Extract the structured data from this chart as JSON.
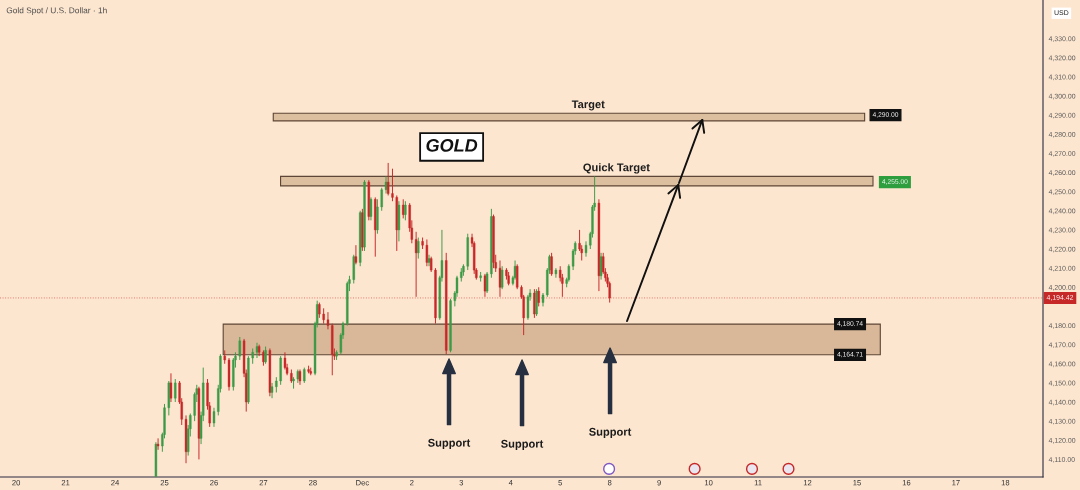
{
  "chart_data": {
    "type": "candlestick",
    "title": "Gold Spot / U.S. Dollar · 1h",
    "ylabel": "USD",
    "categories": [
      null,
      null,
      null,
      null,
      null,
      null,
      null,
      "20",
      null,
      null,
      null,
      null,
      null,
      null,
      null,
      null,
      null,
      null,
      null,
      null,
      null,
      null,
      null,
      null,
      null,
      null,
      null,
      null,
      null,
      null,
      "21",
      null,
      null,
      null,
      null,
      null,
      null,
      null,
      null,
      null,
      null,
      null,
      null,
      null,
      null,
      null,
      null,
      null,
      null,
      null,
      null,
      null,
      null,
      "24",
      null,
      null,
      null,
      null,
      null,
      null,
      null,
      null,
      null,
      null,
      null,
      null,
      null,
      null,
      null,
      null,
      null,
      null,
      null,
      null,
      null,
      null,
      "25",
      null,
      null,
      null,
      null,
      null,
      null,
      null,
      null,
      null,
      null,
      null,
      null,
      null,
      null,
      null,
      null,
      null,
      null,
      null,
      null,
      null,
      null,
      "26",
      null,
      null,
      null,
      null,
      null,
      null,
      null,
      null,
      null,
      null,
      null,
      null,
      null,
      null,
      null,
      null,
      null,
      null,
      null,
      null,
      null,
      null,
      "27",
      null,
      null,
      null,
      null,
      null,
      null,
      null,
      null,
      null,
      null,
      null,
      null,
      null,
      null,
      null,
      null,
      null,
      null,
      null,
      null,
      null,
      null,
      "28",
      null,
      null,
      null,
      null,
      null,
      null,
      null,
      null,
      null,
      null,
      null,
      null,
      null,
      null,
      null,
      null,
      null,
      null,
      null,
      null,
      null,
      null,
      "Dec",
      null,
      null,
      null,
      null,
      null,
      null,
      null,
      null,
      null,
      null,
      null,
      null,
      null,
      null,
      null,
      null,
      null,
      null,
      null,
      null,
      null,
      null,
      "2",
      null,
      null,
      null,
      null,
      null,
      null,
      null,
      null,
      null,
      null,
      null,
      null,
      null,
      null,
      null,
      null,
      null,
      null,
      null,
      null,
      null,
      null,
      "3",
      null,
      null,
      null,
      null,
      null,
      null,
      null,
      null,
      null,
      null,
      null,
      null,
      null,
      null,
      null,
      null,
      null,
      null,
      null,
      null,
      null,
      null,
      "4",
      null,
      null,
      null,
      null,
      null,
      null,
      null,
      null,
      null,
      null,
      null,
      null,
      null,
      null,
      null,
      null,
      null,
      null,
      null,
      null,
      null,
      null,
      "5",
      null,
      null,
      null,
      null,
      null,
      null,
      null,
      null,
      null,
      null,
      null,
      null,
      null,
      null,
      null,
      null,
      null,
      null,
      null,
      null,
      null,
      null,
      "8",
      null,
      null,
      null,
      null,
      null,
      null,
      null,
      null,
      null,
      null,
      null,
      null,
      null,
      null,
      null,
      null,
      null,
      null,
      null,
      null,
      null,
      null,
      "9",
      null,
      null,
      null,
      null,
      null,
      null,
      null,
      null,
      null,
      null,
      null,
      null,
      null,
      null,
      null,
      null,
      null,
      null,
      null,
      null,
      null,
      null,
      "10",
      null,
      null,
      null,
      null,
      null,
      null,
      null,
      null,
      null,
      null,
      null,
      null,
      null,
      null,
      null,
      null,
      null,
      null,
      null,
      null,
      null,
      null,
      "11",
      null,
      null,
      null,
      null,
      null,
      null,
      null,
      null,
      null,
      null,
      null,
      null,
      null,
      null,
      null,
      null,
      null,
      null,
      null,
      null,
      null,
      null,
      "12",
      null,
      null,
      null,
      null,
      null,
      null,
      null,
      null,
      null,
      null,
      null,
      null,
      null,
      null,
      null,
      null,
      null,
      null,
      null,
      null,
      null,
      null,
      "15",
      null,
      null,
      null,
      null,
      null,
      null,
      null,
      null,
      null,
      null,
      null,
      null,
      null,
      null,
      null,
      null,
      null,
      null,
      null,
      null,
      null,
      null,
      "16",
      null,
      null,
      null,
      null,
      null,
      null,
      null,
      null,
      null,
      null,
      null,
      null,
      null,
      null,
      null,
      null,
      null,
      null,
      null,
      null,
      null,
      null,
      "17",
      null,
      null,
      null,
      null,
      null,
      null,
      null,
      null,
      null,
      null,
      null,
      null,
      null,
      null,
      null,
      null,
      null,
      null,
      null,
      null,
      null,
      null,
      "18",
      null,
      null,
      null,
      null,
      null,
      null,
      null,
      null,
      null,
      null,
      null,
      null,
      null,
      null,
      null,
      null,
      null
    ],
    "ohlc": [
      null,
      null,
      null,
      null,
      null,
      null,
      null,
      null,
      null,
      null,
      null,
      null,
      null,
      null,
      null,
      null,
      null,
      null,
      null,
      null,
      null,
      null,
      null,
      null,
      null,
      null,
      null,
      null,
      null,
      null,
      null,
      null,
      null,
      null,
      null,
      null,
      null,
      null,
      null,
      null,
      null,
      null,
      null,
      null,
      null,
      null,
      null,
      null,
      null,
      null,
      null,
      null,
      null,
      null,
      null,
      null,
      null,
      null,
      null,
      null,
      null,
      null,
      null,
      null,
      null,
      null,
      null,
      null,
      null,
      null,
      null,
      null,
      [
        4101,
        4119,
        4101,
        4118
      ],
      [
        4118,
        4121,
        4115,
        4117
      ],
      null,
      [
        4117,
        4124,
        4114,
        4123
      ],
      [
        4123,
        4139,
        4121,
        4137
      ],
      null,
      [
        4137,
        4151,
        4133,
        4150
      ],
      [
        4150,
        4155,
        4140,
        4142
      ],
      null,
      [
        4142,
        4152,
        4140,
        4150
      ],
      null,
      [
        4150,
        4151,
        4139,
        4140
      ],
      [
        4140,
        4142,
        4128,
        4131
      ],
      null,
      [
        4131,
        4133,
        4108,
        4114
      ],
      [
        4114,
        4128,
        4112,
        4126
      ],
      [
        4126,
        4134,
        4122,
        4133
      ],
      null,
      [
        4133,
        4145,
        4130,
        4144
      ],
      [
        4144,
        4149,
        4140,
        4147
      ],
      [
        4147,
        4148,
        4110,
        4121
      ],
      [
        4121,
        4135,
        4118,
        4133
      ],
      [
        4133,
        4158,
        4130,
        4150
      ],
      null,
      [
        4150,
        4152,
        4136,
        4138
      ],
      [
        4138,
        4140,
        4127,
        4129
      ],
      null,
      [
        4129,
        4137,
        4127,
        4135
      ],
      null,
      [
        4135,
        4149,
        4133,
        4147
      ],
      [
        4147,
        4165,
        4145,
        4164
      ],
      null,
      [
        4164,
        4167,
        4160,
        4162
      ],
      null,
      [
        4162,
        4163,
        4146,
        4148
      ],
      null,
      [
        4148,
        4163,
        4146,
        4162
      ],
      [
        4162,
        4166,
        4158,
        4164
      ],
      null,
      [
        4164,
        4174,
        4162,
        4172
      ],
      null,
      [
        4172,
        4173,
        4153,
        4155
      ],
      [
        4155,
        4157,
        4135,
        4140
      ],
      [
        4140,
        4164,
        4139,
        4163
      ],
      null,
      [
        4163,
        4168,
        4160,
        4166
      ],
      null,
      [
        4166,
        4171,
        4163,
        4169
      ],
      [
        4169,
        4170,
        4164,
        4166
      ],
      null,
      [
        4166,
        4167,
        4159,
        4161
      ],
      [
        4161,
        4169,
        4160,
        4167
      ],
      null,
      [
        4167,
        4168,
        4143,
        4145
      ],
      [
        4145,
        4150,
        4142,
        4148
      ],
      null,
      [
        4148,
        4153,
        4145,
        4151
      ],
      null,
      [
        4151,
        4164,
        4149,
        4163
      ],
      null,
      [
        4163,
        4166,
        4157,
        4158
      ],
      [
        4158,
        4160,
        4154,
        4155
      ],
      null,
      [
        4155,
        4157,
        4150,
        4151
      ],
      [
        4151,
        4153,
        4147,
        4152
      ],
      null,
      [
        4152,
        4157,
        4150,
        4156
      ],
      [
        4156,
        4157,
        4149,
        4151
      ],
      null,
      [
        4151,
        4158,
        4150,
        4157
      ],
      null,
      [
        4157,
        4159,
        4155,
        4156
      ],
      [
        4156,
        4158,
        4154,
        4155
      ],
      null,
      [
        4155,
        4182,
        4154,
        4181
      ],
      [
        4181,
        4193,
        4179,
        4191
      ],
      [
        4191,
        4192,
        4184,
        4186
      ],
      null,
      [
        4186,
        4189,
        4181,
        4183
      ],
      null,
      [
        4183,
        4187,
        4178,
        4180
      ],
      null,
      [
        4180,
        4181,
        4154,
        4165
      ],
      [
        4165,
        4168,
        4162,
        4164
      ],
      [
        4164,
        4167,
        4162,
        4166
      ],
      null,
      [
        4166,
        4176,
        4165,
        4175
      ],
      [
        4175,
        4182,
        4173,
        4181
      ],
      null,
      [
        4181,
        4203,
        4180,
        4202
      ],
      [
        4202,
        4206,
        4198,
        4204
      ],
      null,
      [
        4204,
        4217,
        4202,
        4216
      ],
      [
        4216,
        4222,
        4212,
        4213
      ],
      null,
      [
        4213,
        4240,
        4211,
        4239
      ],
      [
        4239,
        4241,
        4219,
        4221
      ],
      [
        4221,
        4256,
        4219,
        4255
      ],
      null,
      [
        4255,
        4256,
        4235,
        4237
      ],
      [
        4237,
        4247,
        4235,
        4246
      ],
      null,
      [
        4246,
        4247,
        4216,
        4230
      ],
      [
        4230,
        4246,
        4228,
        4242
      ],
      null,
      [
        4242,
        4252,
        4240,
        4251
      ],
      null,
      [
        4251,
        4258,
        4249,
        4255
      ],
      [
        4255,
        4265,
        4248,
        4249
      ],
      null,
      [
        4249,
        4262,
        4245,
        4247
      ],
      null,
      [
        4247,
        4248,
        4219,
        4230
      ],
      [
        4230,
        4245,
        4224,
        4243
      ],
      null,
      [
        4243,
        4246,
        4236,
        4238
      ],
      [
        4238,
        4245,
        4235,
        4243
      ],
      null,
      [
        4243,
        4244,
        4229,
        4231
      ],
      [
        4231,
        4235,
        4223,
        4225
      ],
      null,
      [
        4225,
        4229,
        4195,
        4218
      ],
      [
        4218,
        4226,
        4215,
        4224
      ],
      null,
      [
        4224,
        4226,
        4220,
        4222
      ],
      null,
      [
        4222,
        4225,
        4211,
        4213
      ],
      [
        4213,
        4217,
        4211,
        4215
      ],
      [
        4215,
        4216,
        4208,
        4209
      ],
      null,
      [
        4209,
        4210,
        4181,
        4184
      ],
      null,
      [
        4184,
        4206,
        4183,
        4205
      ],
      [
        4205,
        4230,
        4203,
        4214
      ],
      null,
      [
        4214,
        4218,
        4165,
        4167
      ],
      null,
      [
        4167,
        4194,
        4166,
        4193
      ],
      null,
      [
        4193,
        4198,
        4190,
        4197
      ],
      [
        4197,
        4206,
        4195,
        4205
      ],
      null,
      [
        4205,
        4210,
        4203,
        4208
      ],
      [
        4208,
        4212,
        4206,
        4211
      ],
      null,
      [
        4211,
        4228,
        4209,
        4226
      ],
      null,
      [
        4226,
        4228,
        4221,
        4223
      ],
      [
        4223,
        4224,
        4207,
        4209
      ],
      [
        4209,
        4210,
        4204,
        4205
      ],
      null,
      [
        4205,
        4208,
        4203,
        4206
      ],
      null,
      [
        4206,
        4207,
        4195,
        4198
      ],
      [
        4198,
        4208,
        4197,
        4207
      ],
      null,
      [
        4207,
        4241,
        4205,
        4237
      ],
      [
        4237,
        4238,
        4210,
        4213
      ],
      [
        4213,
        4217,
        4208,
        4210
      ],
      null,
      [
        4210,
        4214,
        4195,
        4200
      ],
      [
        4200,
        4211,
        4199,
        4209
      ],
      null,
      [
        4209,
        4210,
        4204,
        4206
      ],
      [
        4206,
        4208,
        4201,
        4202
      ],
      null,
      [
        4202,
        4206,
        4201,
        4205
      ],
      [
        4205,
        4214,
        4204,
        4211
      ],
      [
        4211,
        4212,
        4199,
        4200
      ],
      null,
      [
        4200,
        4201,
        4194,
        4195
      ],
      [
        4195,
        4196,
        4175,
        4184
      ],
      null,
      [
        4184,
        4196,
        4183,
        4195
      ],
      [
        4195,
        4199,
        4193,
        4197
      ],
      null,
      [
        4197,
        4199,
        4184,
        4186
      ],
      [
        4186,
        4199,
        4185,
        4198
      ],
      [
        4198,
        4200,
        4190,
        4192
      ],
      null,
      [
        4192,
        4197,
        4190,
        4196
      ],
      null,
      [
        4196,
        4210,
        4195,
        4209
      ],
      [
        4209,
        4217,
        4207,
        4216
      ],
      [
        4216,
        4218,
        4206,
        4207
      ],
      null,
      [
        4207,
        4210,
        4205,
        4209
      ],
      null,
      [
        4209,
        4211,
        4203,
        4205
      ],
      [
        4205,
        4207,
        4195,
        4202
      ],
      null,
      [
        4202,
        4205,
        4200,
        4204
      ],
      [
        4204,
        4212,
        4203,
        4211
      ],
      null,
      [
        4211,
        4220,
        4209,
        4219
      ],
      [
        4219,
        4224,
        4217,
        4223
      ],
      null,
      [
        4223,
        4230,
        4219,
        4220
      ],
      [
        4220,
        4222,
        4214,
        4218
      ],
      null,
      [
        4218,
        4224,
        4216,
        4222
      ],
      null,
      [
        4222,
        4229,
        4220,
        4228
      ],
      [
        4228,
        4243,
        4226,
        4242
      ],
      [
        4242,
        4258,
        4240,
        4244
      ],
      null,
      [
        4244,
        4246,
        4198,
        4206
      ],
      [
        4206,
        4218,
        4204,
        4216
      ],
      [
        4216,
        4218,
        4207,
        4208
      ],
      [
        4208,
        4210,
        4203,
        4205
      ],
      [
        4205,
        4207,
        4200,
        4202
      ],
      [
        4202,
        4203,
        4192,
        4194.42
      ],
      null,
      null,
      null,
      null,
      null,
      null,
      null,
      null,
      null,
      null,
      null,
      null,
      null,
      null,
      null,
      null,
      null,
      null,
      null,
      null,
      null,
      null,
      null,
      null,
      null,
      null,
      null,
      null,
      null,
      null,
      null,
      null,
      null,
      null,
      null,
      null,
      null,
      null,
      null,
      null,
      null,
      null,
      null,
      null,
      null,
      null,
      null,
      null,
      null,
      null,
      null,
      null,
      null,
      null,
      null,
      null,
      null,
      null,
      null,
      null,
      null,
      null,
      null,
      null,
      null,
      null,
      null,
      null,
      null,
      null,
      null,
      null,
      null,
      null,
      null,
      null,
      null,
      null,
      null,
      null,
      null,
      null,
      null,
      null,
      null,
      null,
      null,
      null,
      null,
      null,
      null,
      null,
      null,
      null,
      null,
      null,
      null,
      null,
      null,
      null,
      null,
      null,
      null,
      null,
      null,
      null,
      null,
      null,
      null,
      null,
      null,
      null,
      null,
      null,
      null,
      null,
      null,
      null,
      null,
      null,
      null,
      null,
      null,
      null,
      null,
      null,
      null,
      null,
      null,
      null,
      null,
      null,
      null,
      null,
      null,
      null,
      null,
      null,
      null,
      null,
      null,
      null,
      null,
      null,
      null,
      null,
      null,
      null,
      null,
      null,
      null,
      null,
      null,
      null,
      null,
      null,
      null,
      null,
      null,
      null,
      null,
      null,
      null,
      null,
      null,
      null,
      null,
      null,
      null,
      null,
      null,
      null,
      null,
      null,
      null,
      null,
      null,
      null,
      null,
      null,
      null,
      null,
      null,
      null,
      null,
      null,
      null,
      null,
      null,
      null,
      null,
      null,
      null,
      null,
      null,
      null,
      null,
      null,
      null,
      null,
      null
    ],
    "colors": [
      null,
      null,
      null,
      null,
      null,
      null,
      null,
      null,
      null,
      null,
      null,
      null,
      null,
      null,
      null,
      null,
      null,
      null,
      null,
      null,
      null,
      null,
      null,
      null,
      null,
      null,
      null,
      null,
      null,
      null,
      null,
      null,
      null,
      null,
      null,
      null,
      null,
      null,
      null,
      null,
      null,
      null,
      null,
      null,
      null,
      null,
      null,
      null,
      null,
      null,
      null,
      null,
      null,
      null,
      null,
      null,
      null,
      null,
      null,
      null,
      null,
      null,
      null,
      null,
      null,
      null,
      null,
      null,
      null,
      null,
      null,
      null,
      "#3d9a47",
      "#c62828",
      null,
      "#3d9a47",
      "#3d9a47",
      null,
      "#3d9a47",
      "#c62828",
      null,
      "#3d9a47",
      null,
      "#c62828",
      "#c62828",
      null,
      "#c62828",
      "#3d9a47",
      "#3d9a47",
      null,
      "#3d9a47",
      "#3d9a47",
      "#c62828",
      "#3d9a47",
      "#3d9a47",
      null,
      "#c62828",
      "#c62828",
      null,
      "#3d9a47",
      null,
      "#3d9a47",
      "#3d9a47",
      null,
      "#c62828",
      null,
      "#c62828",
      null,
      "#3d9a47",
      "#3d9a47",
      null,
      "#3d9a47",
      null,
      "#c62828",
      "#c62828",
      "#3d9a47",
      null,
      "#3d9a47",
      null,
      "#3d9a47",
      "#c62828",
      null,
      "#c62828",
      "#3d9a47",
      null,
      "#c62828",
      "#3d9a47",
      null,
      "#3d9a47",
      null,
      "#3d9a47",
      null,
      "#c62828",
      "#c62828",
      null,
      "#c62828",
      "#3d9a47",
      null,
      "#3d9a47",
      "#c62828",
      null,
      "#3d9a47",
      null,
      "#c62828",
      "#c62828",
      null,
      "#3d9a47",
      "#3d9a47",
      "#c62828",
      null,
      "#c62828",
      null,
      "#c62828",
      null,
      "#c62828",
      "#c62828",
      "#3d9a47",
      null,
      "#3d9a47",
      "#3d9a47",
      null,
      "#3d9a47",
      "#3d9a47",
      null,
      "#3d9a47",
      "#c62828",
      null,
      "#3d9a47",
      "#c62828",
      "#3d9a47",
      null,
      "#c62828",
      "#3d9a47",
      null,
      "#c62828",
      "#3d9a47",
      null,
      "#3d9a47",
      null,
      "#3d9a47",
      "#c62828",
      null,
      "#c62828",
      null,
      "#c62828",
      "#3d9a47",
      null,
      "#c62828",
      "#3d9a47",
      null,
      "#c62828",
      "#c62828",
      null,
      "#c62828",
      "#3d9a47",
      null,
      "#c62828",
      null,
      "#c62828",
      "#3d9a47",
      "#c62828",
      null,
      "#c62828",
      null,
      "#3d9a47",
      "#3d9a47",
      null,
      "#c62828",
      null,
      "#3d9a47",
      null,
      "#3d9a47",
      "#3d9a47",
      null,
      "#3d9a47",
      "#3d9a47",
      null,
      "#3d9a47",
      null,
      "#c62828",
      "#c62828",
      "#c62828",
      null,
      "#3d9a47",
      null,
      "#c62828",
      "#3d9a47",
      null,
      "#3d9a47",
      "#c62828",
      "#c62828",
      null,
      "#c62828",
      "#3d9a47",
      null,
      "#c62828",
      "#c62828",
      null,
      "#3d9a47",
      "#3d9a47",
      "#c62828",
      null,
      "#c62828",
      "#c62828",
      null,
      "#3d9a47",
      "#3d9a47",
      null,
      "#c62828",
      "#3d9a47",
      "#c62828",
      null,
      "#3d9a47",
      null,
      "#3d9a47",
      "#3d9a47",
      "#c62828",
      null,
      "#3d9a47",
      null,
      "#c62828",
      "#c62828",
      null,
      "#3d9a47",
      "#3d9a47",
      null,
      "#3d9a47",
      "#3d9a47",
      null,
      "#c62828",
      "#c62828",
      null,
      "#3d9a47",
      null,
      "#3d9a47",
      "#3d9a47",
      "#3d9a47",
      null,
      "#c62828",
      "#3d9a47",
      "#c62828",
      "#c62828",
      "#c62828",
      "#c62828",
      null,
      null,
      null,
      null,
      null,
      null,
      null,
      null,
      null,
      null,
      null,
      null,
      null,
      null,
      null,
      null,
      null,
      null,
      null,
      null,
      null,
      null,
      null,
      null,
      null,
      null,
      null,
      null,
      null,
      null,
      null,
      null,
      null,
      null,
      null,
      null,
      null,
      null,
      null,
      null,
      null,
      null,
      null,
      null,
      null,
      null,
      null,
      null,
      null,
      null,
      null,
      null,
      null,
      null,
      null,
      null,
      null,
      null,
      null,
      null,
      null,
      null,
      null,
      null,
      null,
      null,
      null,
      null,
      null,
      null,
      null,
      null,
      null,
      null,
      null,
      null,
      null,
      null,
      null,
      null,
      null,
      null,
      null,
      null,
      null,
      null,
      null,
      null,
      null,
      null,
      null,
      null,
      null,
      null,
      null,
      null,
      null,
      null,
      null,
      null,
      null,
      null,
      null,
      null,
      null,
      null,
      null,
      null,
      null,
      null,
      null,
      null,
      null,
      null,
      null,
      null,
      null,
      null,
      null,
      null,
      null,
      null,
      null,
      null,
      null,
      null,
      null,
      null,
      null,
      null,
      null,
      null,
      null,
      null,
      null,
      null,
      null,
      null,
      null,
      null,
      null,
      null,
      null,
      null,
      null,
      null,
      null,
      null,
      null,
      null,
      null,
      null,
      null,
      null,
      null,
      null,
      null,
      null,
      null,
      null,
      null,
      null,
      null,
      null,
      null,
      null,
      null,
      null,
      null,
      null,
      null,
      null,
      null,
      null,
      null,
      null,
      null,
      null,
      null,
      null,
      null,
      null,
      null,
      null,
      null,
      null,
      null,
      null,
      null,
      null,
      null,
      null,
      null,
      null,
      null,
      null,
      null,
      null,
      null,
      null,
      null
    ],
    "ylim": [
      4100.8,
      4350.2
    ],
    "yticks": [
      {
        "value": 4110,
        "label": "4,110.00"
      },
      {
        "value": 4120,
        "label": "4,120.00"
      },
      {
        "value": 4130,
        "label": "4,130.00"
      },
      {
        "value": 4140,
        "label": "4,140.00"
      },
      {
        "value": 4150,
        "label": "4,150.00"
      },
      {
        "value": 4160,
        "label": "4,160.00"
      },
      {
        "value": 4170,
        "label": "4,170.00"
      },
      {
        "value": 4180,
        "label": "4,180.00"
      },
      {
        "value": 4200,
        "label": "4,200.00"
      },
      {
        "value": 4210,
        "label": "4,210.00"
      },
      {
        "value": 4220,
        "label": "4,220.00"
      },
      {
        "value": 4230,
        "label": "4,230.00"
      },
      {
        "value": 4240,
        "label": "4,240.00"
      },
      {
        "value": 4250,
        "label": "4,250.00"
      },
      {
        "value": 4260,
        "label": "4,260.00"
      },
      {
        "value": 4270,
        "label": "4,270.00"
      },
      {
        "value": 4280,
        "label": "4,280.00"
      },
      {
        "value": 4290,
        "label": "4,290.00"
      },
      {
        "value": 4300,
        "label": "4,300.00"
      },
      {
        "value": 4310,
        "label": "4,310.00"
      },
      {
        "value": 4320,
        "label": "4,320.00"
      },
      {
        "value": 4330,
        "label": "4,330.00"
      }
    ],
    "bands": [
      {
        "axis": "y",
        "from": 4287,
        "to": 4291,
        "label": "Target",
        "color": "#dcbf9f"
      },
      {
        "axis": "y",
        "from": 4253,
        "to": 4258,
        "label": "Quick Target",
        "color": "#dcbf9f"
      },
      {
        "axis": "y",
        "from": 4164.71,
        "to": 4180.74,
        "label": null,
        "color": "#d8b898"
      }
    ],
    "ref_lines": [
      {
        "axis": "y",
        "value": 4194.42,
        "label": "4,194.42",
        "color": "#c62828",
        "line_style": "dotted"
      }
    ],
    "annotations": [
      "GOLD",
      {
        "text": "4,290.00",
        "y": 4290
      },
      {
        "text": "4,255.00",
        "y": 4255
      },
      {
        "text": "4,180.74",
        "y": 4180.74
      },
      {
        "text": "4,164.71",
        "y": 4164.71
      },
      "Support",
      "Support",
      "Support"
    ]
  }
}
